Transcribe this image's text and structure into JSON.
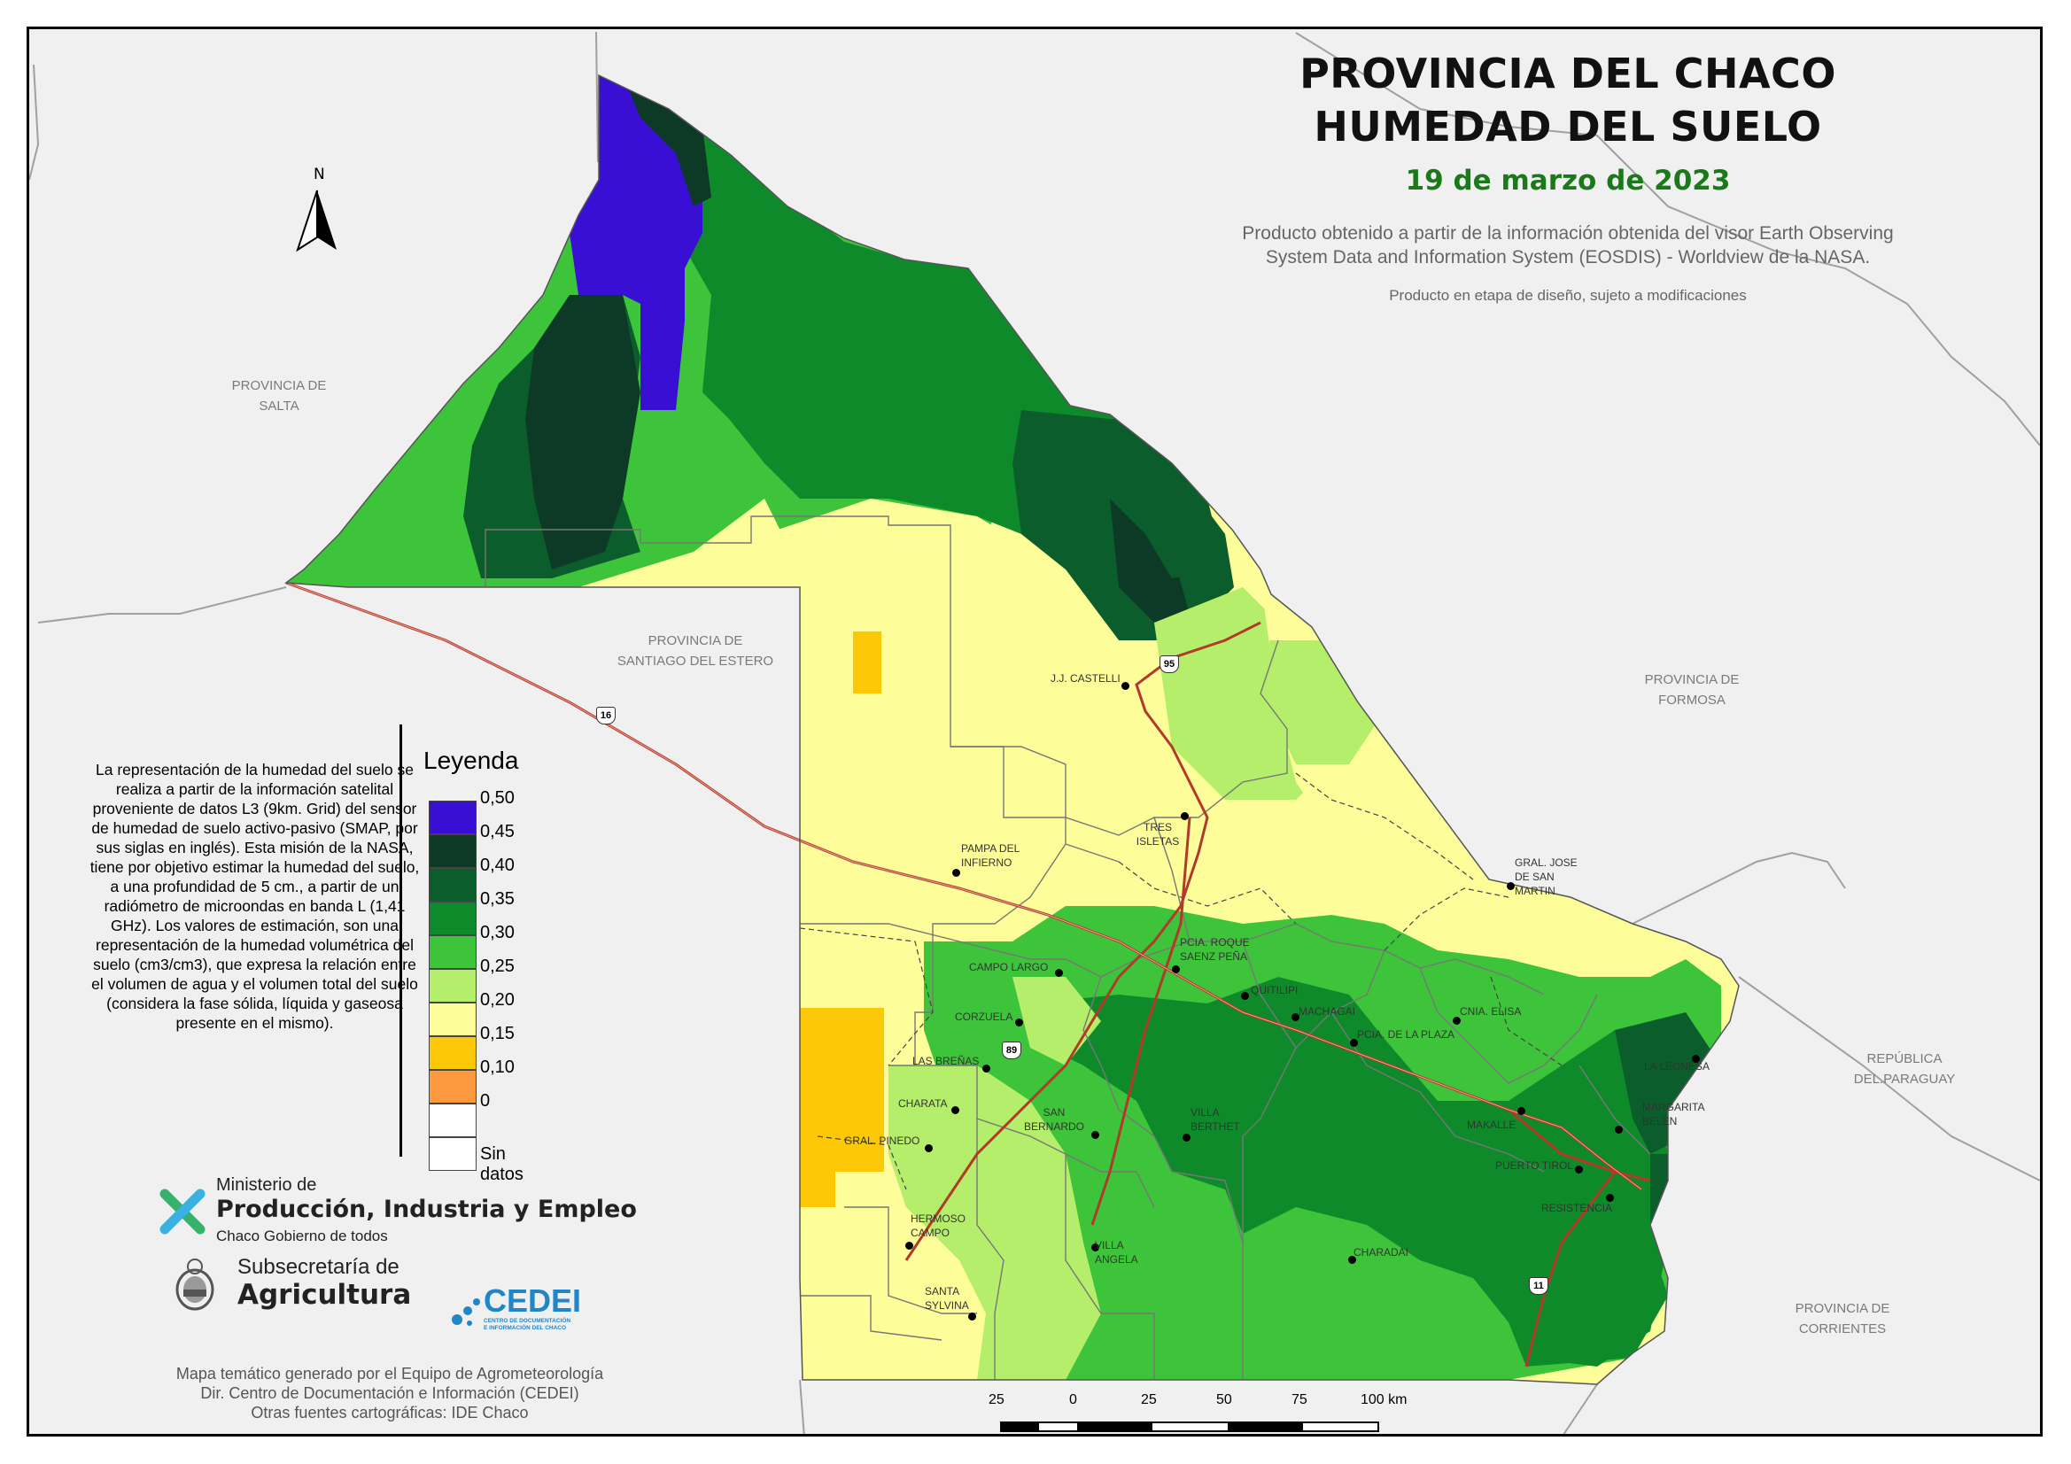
{
  "title": {
    "line1": "PROVINCIA DEL CHACO",
    "line2": "HUMEDAD DEL SUELO",
    "date": "19 de marzo de 2023"
  },
  "subtitle": {
    "line1": "Producto obtenido a partir de la información obtenida del visor Earth Observing",
    "line2": "System Data and Information System (EOSDIS) - Worldview de la NASA.",
    "note": "Producto en etapa de diseño, sujeto a modificaciones"
  },
  "north_label": "N",
  "regions": {
    "salta": [
      "PROVINCIA DE",
      "SALTA"
    ],
    "santiago": [
      "PROVINCIA DE",
      "SANTIAGO DEL ESTERO"
    ],
    "formosa": [
      "PROVINCIA DE",
      "FORMOSA"
    ],
    "paraguay": [
      "REPÚBLICA",
      "DEL.PARAGUAY"
    ],
    "corrientes": [
      "PROVINCIA DE",
      "CORRIENTES"
    ]
  },
  "cities": [
    {
      "name": "J.J. CASTELLI"
    },
    {
      "name": "TRES ISLETAS"
    },
    {
      "name": "PAMPA DEL INFIERNO"
    },
    {
      "name": "GRAL. JOSE DE SAN MARTIN"
    },
    {
      "name": "PCIA. ROQUE SAENZ PEÑA"
    },
    {
      "name": "CAMPO LARGO"
    },
    {
      "name": "QUITILIPI"
    },
    {
      "name": "MACHAGAI"
    },
    {
      "name": "CNIA. ELISA"
    },
    {
      "name": "PCIA. DE LA PLAZA"
    },
    {
      "name": "CORZUELA"
    },
    {
      "name": "LAS BREÑAS"
    },
    {
      "name": "LA LEONESA"
    },
    {
      "name": "CHARATA"
    },
    {
      "name": "SAN BERNARDO"
    },
    {
      "name": "VILLA BERTHET"
    },
    {
      "name": "MARGARITA BELEN"
    },
    {
      "name": "MAKALLE"
    },
    {
      "name": "GRAL. PINEDO"
    },
    {
      "name": "PUERTO TIROL"
    },
    {
      "name": "RESISTENCIA"
    },
    {
      "name": "HERMOSO CAMPO"
    },
    {
      "name": "VILLA ANGELA"
    },
    {
      "name": "CHARADAI"
    },
    {
      "name": "SANTA SYLVINA"
    }
  ],
  "routes": [
    "16",
    "95",
    "89",
    "11"
  ],
  "description": "La representación de la humedad del suelo se realiza a partir de la información satelital proveniente de datos L3 (9km. Grid) del sensor de humedad de suelo activo-pasivo (SMAP, por sus siglas en inglés). Esta misión de la NASA, tiene por objetivo estimar la humedad del suelo, a una profundidad de 5 cm., a partir de un radiómetro de microondas en banda L (1,41 GHz). Los valores de estimación, son una representación de la humedad volumétrica del suelo (cm3/cm3), que expresa la relación entre el volumen de agua y el volumen total del suelo (considera la fase sólida, líquida y gaseosa presente en el mismo).",
  "legend": {
    "title": "Leyenda",
    "classes": [
      {
        "label": "0,50",
        "color": "#3a0fd4"
      },
      {
        "label": "0,45",
        "color": "#0d3a26"
      },
      {
        "label": "0,40",
        "color": "#0b5e2c"
      },
      {
        "label": "0,35",
        "color": "#0f8a2a"
      },
      {
        "label": "0,30",
        "color": "#3ec43a"
      },
      {
        "label": "0,25",
        "color": "#b5ee6a"
      },
      {
        "label": "0,20",
        "color": "#fdfd9a"
      },
      {
        "label": "0,15",
        "color": "#fcc808"
      },
      {
        "label": "0,10",
        "color": "#fd9a40"
      },
      {
        "label": "0",
        "color": "#ffffff"
      }
    ],
    "nodata_label": "Sin datos"
  },
  "logos": {
    "ministerio_line1": "Ministerio de",
    "ministerio_line2": "Producción, Industria y Empleo",
    "ministerio_line3": "Chaco Gobierno de todos",
    "subsecretaria_line1": "Subsecretaría de",
    "subsecretaria_line2": "Agricultura",
    "cedei": "CEDEI",
    "cedei_sub1": "CENTRO DE DOCUMENTACIÓN",
    "cedei_sub2": "E INFORMACIÓN DEL CHACO"
  },
  "credits": {
    "line1": "Mapa temático generado por el Equipo de Agrometeorología",
    "line2": "Dir. Centro de Documentación e Información (CEDEI)",
    "line3": "Otras fuentes cartográficas: IDE Chaco"
  },
  "scale": {
    "labels": [
      "25",
      "0",
      "25",
      "50",
      "75",
      "100 km"
    ]
  }
}
